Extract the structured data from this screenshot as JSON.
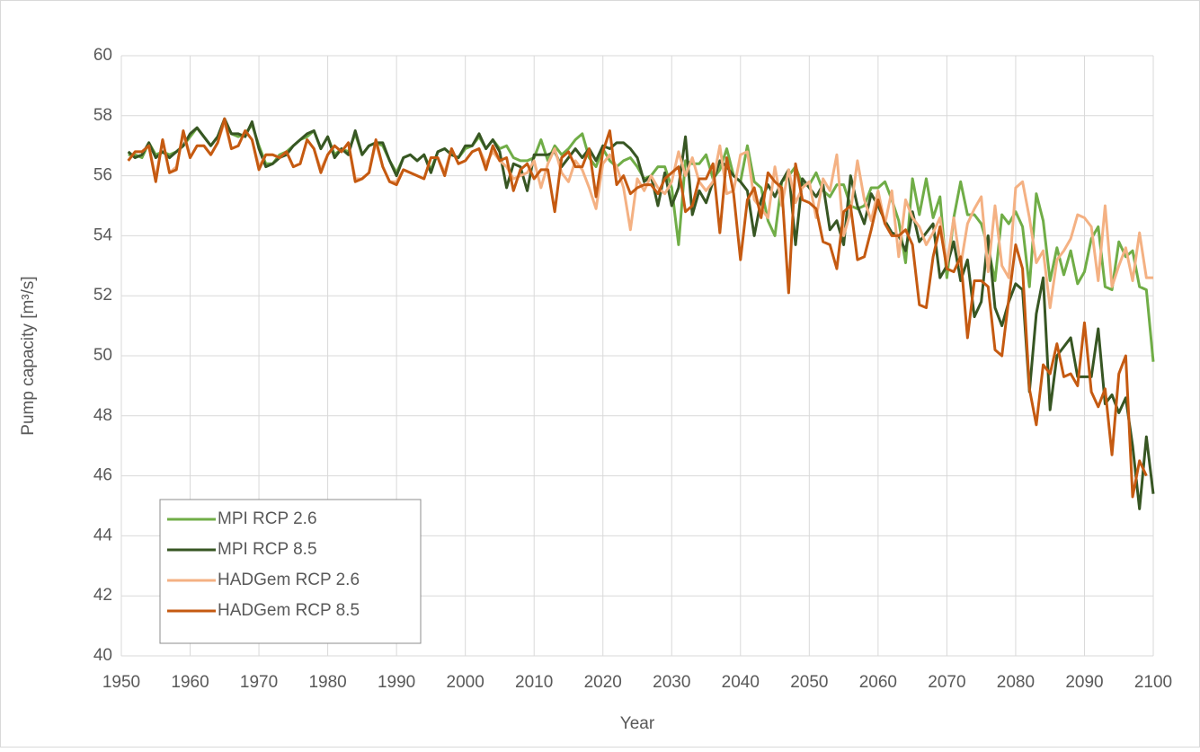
{
  "chart_data": {
    "type": "line",
    "x_label": "Year",
    "y_label": "Pump capacity [m³/s]",
    "x": [
      1951,
      1952,
      1953,
      1954,
      1955,
      1956,
      1957,
      1958,
      1959,
      1960,
      1961,
      1962,
      1963,
      1964,
      1965,
      1966,
      1967,
      1968,
      1969,
      1970,
      1971,
      1972,
      1973,
      1974,
      1975,
      1976,
      1977,
      1978,
      1979,
      1980,
      1981,
      1982,
      1983,
      1984,
      1985,
      1986,
      1987,
      1988,
      1989,
      1990,
      1991,
      1992,
      1993,
      1994,
      1995,
      1996,
      1997,
      1998,
      1999,
      2000,
      2001,
      2002,
      2003,
      2004,
      2005,
      2006,
      2007,
      2008,
      2009,
      2010,
      2011,
      2012,
      2013,
      2014,
      2015,
      2016,
      2017,
      2018,
      2019,
      2020,
      2021,
      2022,
      2023,
      2024,
      2025,
      2026,
      2027,
      2028,
      2029,
      2030,
      2031,
      2032,
      2033,
      2034,
      2035,
      2036,
      2037,
      2038,
      2039,
      2040,
      2041,
      2042,
      2043,
      2044,
      2045,
      2046,
      2047,
      2048,
      2049,
      2050,
      2051,
      2052,
      2053,
      2054,
      2055,
      2056,
      2057,
      2058,
      2059,
      2060,
      2061,
      2062,
      2063,
      2064,
      2065,
      2066,
      2067,
      2068,
      2069,
      2070,
      2071,
      2072,
      2073,
      2074,
      2075,
      2076,
      2077,
      2078,
      2079,
      2080,
      2081,
      2082,
      2083,
      2084,
      2085,
      2086,
      2087,
      2088,
      2089,
      2090,
      2091,
      2092,
      2093,
      2094,
      2095,
      2096,
      2097,
      2098,
      2099,
      2100
    ],
    "series": [
      {
        "name": "MPI RCP 2.6",
        "color": "#70ad47",
        "values": [
          56.7,
          56.7,
          56.6,
          57.1,
          56.7,
          56.8,
          56.7,
          56.8,
          57.0,
          57.3,
          57.6,
          57.3,
          57.0,
          57.3,
          57.8,
          57.4,
          57.3,
          57.4,
          57.7,
          57.0,
          56.4,
          56.4,
          56.7,
          56.8,
          57.0,
          57.2,
          57.3,
          57.5,
          56.9,
          57.3,
          56.7,
          56.9,
          56.8,
          57.4,
          56.7,
          57.0,
          57.1,
          57.0,
          56.5,
          56.1,
          56.6,
          56.7,
          56.5,
          56.7,
          56.2,
          56.8,
          56.9,
          56.7,
          56.6,
          56.9,
          57.0,
          57.3,
          56.9,
          57.2,
          56.9,
          57.0,
          56.6,
          56.5,
          56.5,
          56.6,
          57.2,
          56.5,
          57.0,
          56.7,
          56.9,
          57.2,
          57.4,
          56.6,
          56.3,
          56.9,
          56.5,
          56.3,
          56.5,
          56.6,
          56.3,
          55.9,
          56.0,
          56.3,
          56.3,
          55.6,
          53.7,
          56.5,
          56.4,
          56.4,
          56.7,
          55.9,
          56.2,
          56.9,
          56.0,
          55.8,
          57.0,
          55.8,
          55.6,
          54.5,
          54.0,
          55.8,
          56.0,
          56.3,
          55.7,
          55.7,
          56.1,
          55.5,
          55.3,
          55.7,
          55.7,
          55.0,
          54.9,
          55.0,
          55.6,
          55.6,
          55.8,
          55.2,
          54.5,
          53.1,
          55.9,
          54.7,
          55.9,
          54.6,
          55.3,
          52.6,
          54.6,
          55.8,
          54.7,
          54.7,
          54.4,
          53.6,
          52.5,
          54.7,
          54.4,
          54.8,
          54.3,
          52.3,
          55.4,
          54.5,
          52.5,
          53.6,
          52.7,
          53.5,
          52.4,
          52.8,
          53.9,
          54.3,
          52.3,
          52.2,
          53.8,
          53.3,
          53.5,
          52.3,
          52.2,
          49.8
        ]
      },
      {
        "name": "MPI RCP 8.5",
        "color": "#375623",
        "values": [
          56.8,
          56.6,
          56.7,
          57.1,
          56.6,
          56.8,
          56.6,
          56.8,
          57.0,
          57.4,
          57.6,
          57.3,
          57.0,
          57.3,
          57.9,
          57.4,
          57.4,
          57.3,
          57.8,
          56.9,
          56.3,
          56.4,
          56.6,
          56.7,
          57.0,
          57.2,
          57.4,
          57.5,
          56.9,
          57.3,
          56.6,
          56.9,
          56.7,
          57.5,
          56.7,
          57.0,
          57.1,
          57.1,
          56.5,
          56.0,
          56.6,
          56.7,
          56.5,
          56.7,
          56.1,
          56.8,
          56.9,
          56.7,
          56.6,
          57.0,
          57.0,
          57.4,
          56.9,
          57.2,
          56.8,
          55.6,
          56.4,
          56.3,
          55.5,
          56.7,
          56.7,
          56.7,
          56.8,
          56.3,
          56.6,
          56.9,
          56.6,
          56.9,
          56.5,
          57.0,
          56.9,
          57.1,
          57.1,
          56.9,
          56.6,
          55.8,
          56.0,
          55.0,
          56.1,
          55.0,
          55.6,
          57.3,
          54.7,
          55.5,
          55.1,
          55.8,
          56.5,
          56.3,
          56.0,
          55.8,
          55.5,
          54.0,
          55.2,
          55.7,
          55.3,
          55.8,
          56.2,
          53.7,
          55.9,
          55.6,
          55.3,
          55.7,
          54.2,
          54.5,
          53.7,
          56.0,
          55.0,
          54.4,
          55.4,
          55.0,
          54.5,
          54.1,
          54.0,
          53.5,
          54.8,
          53.8,
          54.1,
          54.4,
          52.6,
          53.0,
          53.8,
          52.5,
          53.2,
          51.3,
          51.8,
          54.0,
          51.6,
          51.0,
          51.8,
          52.4,
          52.2,
          48.8,
          51.4,
          52.6,
          48.2,
          50.0,
          50.3,
          50.6,
          49.3,
          49.3,
          49.3,
          50.9,
          48.4,
          48.7,
          48.1,
          48.6,
          47.0,
          44.9,
          47.3,
          45.4
        ]
      },
      {
        "name": "HADGem RCP 2.6",
        "color": "#f4b183",
        "values": [
          56.5,
          56.8,
          56.8,
          57.0,
          55.9,
          57.2,
          56.1,
          56.3,
          57.4,
          56.6,
          57.0,
          57.0,
          56.7,
          57.1,
          57.8,
          56.9,
          57.0,
          57.5,
          57.2,
          56.3,
          56.7,
          56.7,
          56.6,
          56.8,
          56.3,
          56.4,
          57.2,
          56.9,
          56.2,
          56.7,
          57.0,
          56.8,
          57.1,
          55.9,
          55.9,
          56.1,
          57.1,
          56.3,
          55.8,
          55.8,
          56.2,
          56.1,
          56.0,
          55.9,
          56.6,
          56.6,
          56.1,
          56.9,
          56.4,
          56.5,
          56.8,
          56.9,
          56.4,
          56.8,
          56.5,
          56.3,
          55.9,
          56.0,
          56.1,
          56.5,
          55.6,
          56.4,
          56.9,
          56.1,
          55.8,
          56.5,
          56.2,
          55.6,
          54.9,
          56.4,
          56.7,
          56.3,
          55.6,
          54.2,
          55.9,
          55.5,
          56.0,
          55.6,
          55.4,
          55.8,
          56.8,
          56.0,
          56.6,
          55.8,
          55.5,
          55.8,
          57.0,
          55.4,
          55.5,
          56.7,
          56.8,
          55.2,
          54.9,
          54.6,
          56.3,
          55.0,
          56.2,
          55.1,
          55.6,
          55.8,
          54.6,
          55.9,
          55.5,
          56.7,
          54.0,
          54.8,
          56.5,
          55.2,
          54.5,
          55.5,
          54.4,
          55.5,
          53.3,
          55.2,
          54.6,
          54.3,
          53.7,
          54.1,
          54.6,
          53.0,
          54.6,
          53.0,
          54.4,
          54.9,
          55.3,
          52.8,
          55.0,
          53.0,
          52.6,
          55.6,
          55.8,
          54.6,
          53.1,
          53.5,
          51.6,
          53.2,
          53.5,
          53.9,
          54.7,
          54.6,
          54.3,
          52.5,
          55.0,
          52.3,
          53.0,
          53.6,
          52.5,
          54.1,
          52.6,
          52.6
        ]
      },
      {
        "name": "HADGem RCP 8.5",
        "color": "#c55a11",
        "values": [
          56.5,
          56.8,
          56.8,
          57.0,
          55.8,
          57.2,
          56.1,
          56.2,
          57.5,
          56.6,
          57.0,
          57.0,
          56.7,
          57.1,
          57.9,
          56.9,
          57.0,
          57.5,
          57.2,
          56.2,
          56.7,
          56.7,
          56.6,
          56.8,
          56.3,
          56.4,
          57.2,
          56.9,
          56.1,
          56.7,
          57.0,
          56.8,
          57.1,
          55.8,
          55.9,
          56.1,
          57.2,
          56.3,
          55.8,
          55.7,
          56.2,
          56.1,
          56.0,
          55.9,
          56.6,
          56.6,
          56.0,
          56.9,
          56.4,
          56.5,
          56.8,
          56.9,
          56.2,
          57.0,
          56.5,
          56.6,
          55.5,
          56.2,
          56.4,
          55.9,
          56.2,
          56.2,
          54.8,
          56.6,
          56.8,
          56.3,
          56.3,
          56.9,
          55.3,
          56.8,
          57.5,
          55.7,
          56.0,
          55.4,
          55.6,
          55.7,
          55.7,
          55.4,
          55.9,
          56.1,
          56.3,
          54.8,
          55.0,
          55.9,
          55.9,
          56.4,
          54.1,
          56.6,
          55.4,
          53.2,
          55.2,
          55.6,
          54.6,
          56.1,
          55.8,
          55.6,
          52.1,
          56.4,
          55.2,
          55.1,
          54.9,
          53.8,
          53.7,
          52.9,
          54.8,
          55.0,
          53.2,
          53.3,
          54.2,
          55.2,
          54.4,
          54.0,
          54.0,
          54.2,
          53.7,
          51.7,
          51.6,
          53.3,
          54.3,
          52.9,
          52.8,
          53.3,
          50.6,
          52.5,
          52.5,
          52.3,
          50.2,
          50.0,
          51.9,
          53.7,
          52.9,
          48.9,
          47.7,
          49.7,
          49.4,
          50.4,
          49.3,
          49.4,
          49.0,
          51.1,
          48.8,
          48.3,
          48.9,
          46.7,
          49.4,
          50.0,
          45.3,
          46.5,
          46.0,
          null
        ]
      }
    ],
    "xlim": [
      1950,
      2100
    ],
    "xticks": [
      1950,
      1960,
      1970,
      1980,
      1990,
      2000,
      2010,
      2020,
      2030,
      2040,
      2050,
      2060,
      2070,
      2080,
      2090,
      2100
    ],
    "ylim": [
      40,
      60
    ],
    "yticks": [
      40,
      42,
      44,
      46,
      48,
      50,
      52,
      54,
      56,
      58,
      60
    ],
    "grid": true,
    "legend": "lower left"
  }
}
